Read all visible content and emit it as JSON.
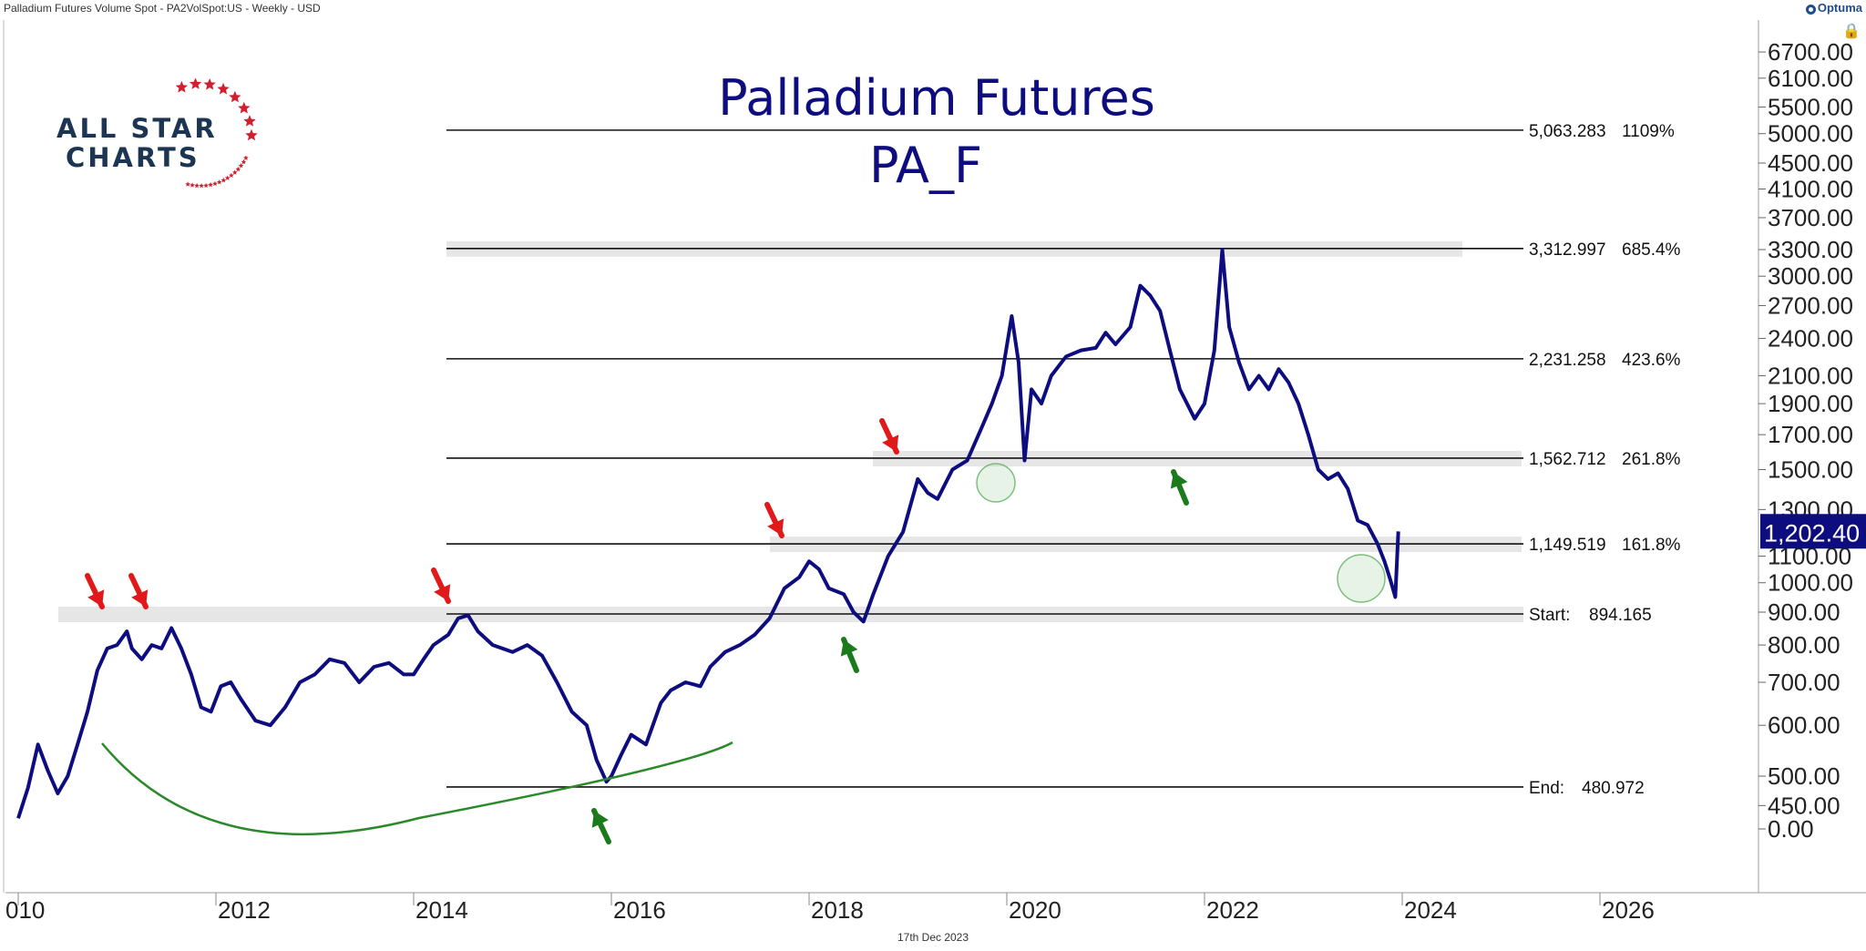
{
  "header": {
    "source_label": "Palladium Futures Volume Spot - PA2VolSpot:US - Weekly - USD",
    "brand": "Optuma"
  },
  "logo": {
    "line1": "ALL STAR",
    "line2": "CHARTS"
  },
  "footer": {
    "date": "17th Dec 2023"
  },
  "colors": {
    "price": "#0d0d80",
    "title": "#0d0d80",
    "up_arrow": "#1b7a1b",
    "down_arrow": "#e0191b",
    "arc": "#2a8a2a",
    "band": "#e6e6e6",
    "current_badge": "#0d0d80",
    "circle": "#7bbf7b"
  },
  "chart_data": {
    "type": "line",
    "title": "Palladium Futures",
    "subtitle": "PA_F",
    "x_ticks": [
      "010",
      "2012",
      "2014",
      "2016",
      "2018",
      "2020",
      "2022",
      "2024",
      "2026"
    ],
    "y_ticks": [
      "6700.00",
      "6100.00",
      "5500.00",
      "5000.00",
      "4500.00",
      "4100.00",
      "3700.00",
      "3300.00",
      "3000.00",
      "2700.00",
      "2400.00",
      "2100.00",
      "1900.00",
      "1700.00",
      "1500.00",
      "1300.00",
      "1100.00",
      "1000.00",
      "900.00",
      "800.00",
      "700.00",
      "600.00",
      "500.00",
      "450.00",
      "0.00"
    ],
    "current_price": "1,202.40",
    "fib_levels": [
      {
        "value": "5,063.283",
        "percent": "1109%"
      },
      {
        "value": "3,312.997",
        "percent": "685.4%"
      },
      {
        "value": "2,231.258",
        "percent": "423.6%"
      },
      {
        "value": "1,562.712",
        "percent": "261.8%"
      },
      {
        "value": "1,149.519",
        "percent": "161.8%"
      },
      {
        "value": "Start:",
        "percent": "894.165"
      },
      {
        "value": "End:",
        "percent": "480.972"
      }
    ],
    "series": [
      {
        "values": [
          [
            2010.0,
            430
          ],
          [
            2010.1,
            480
          ],
          [
            2010.2,
            560
          ],
          [
            2010.3,
            510
          ],
          [
            2010.4,
            470
          ],
          [
            2010.5,
            500
          ],
          [
            2010.6,
            560
          ],
          [
            2010.7,
            630
          ],
          [
            2010.8,
            730
          ],
          [
            2010.9,
            790
          ],
          [
            2011.0,
            800
          ],
          [
            2011.1,
            840
          ],
          [
            2011.15,
            790
          ],
          [
            2011.25,
            760
          ],
          [
            2011.35,
            800
          ],
          [
            2011.45,
            790
          ],
          [
            2011.55,
            850
          ],
          [
            2011.65,
            790
          ],
          [
            2011.75,
            720
          ],
          [
            2011.85,
            640
          ],
          [
            2011.95,
            630
          ],
          [
            2012.05,
            690
          ],
          [
            2012.15,
            700
          ],
          [
            2012.25,
            660
          ],
          [
            2012.4,
            610
          ],
          [
            2012.55,
            600
          ],
          [
            2012.7,
            640
          ],
          [
            2012.85,
            700
          ],
          [
            2013.0,
            720
          ],
          [
            2013.15,
            760
          ],
          [
            2013.3,
            750
          ],
          [
            2013.45,
            700
          ],
          [
            2013.6,
            740
          ],
          [
            2013.75,
            750
          ],
          [
            2013.9,
            720
          ],
          [
            2014.0,
            720
          ],
          [
            2014.1,
            760
          ],
          [
            2014.2,
            800
          ],
          [
            2014.35,
            830
          ],
          [
            2014.45,
            880
          ],
          [
            2014.55,
            890
          ],
          [
            2014.65,
            840
          ],
          [
            2014.8,
            800
          ],
          [
            2015.0,
            780
          ],
          [
            2015.15,
            800
          ],
          [
            2015.3,
            770
          ],
          [
            2015.45,
            700
          ],
          [
            2015.6,
            630
          ],
          [
            2015.75,
            600
          ],
          [
            2015.85,
            530
          ],
          [
            2015.95,
            490
          ],
          [
            2016.0,
            500
          ],
          [
            2016.1,
            540
          ],
          [
            2016.2,
            580
          ],
          [
            2016.35,
            560
          ],
          [
            2016.5,
            650
          ],
          [
            2016.6,
            680
          ],
          [
            2016.75,
            700
          ],
          [
            2016.9,
            690
          ],
          [
            2017.0,
            740
          ],
          [
            2017.15,
            780
          ],
          [
            2017.3,
            800
          ],
          [
            2017.45,
            830
          ],
          [
            2017.6,
            880
          ],
          [
            2017.75,
            980
          ],
          [
            2017.9,
            1020
          ],
          [
            2018.0,
            1080
          ],
          [
            2018.1,
            1050
          ],
          [
            2018.2,
            980
          ],
          [
            2018.35,
            960
          ],
          [
            2018.45,
            900
          ],
          [
            2018.55,
            870
          ],
          [
            2018.65,
            960
          ],
          [
            2018.8,
            1100
          ],
          [
            2018.95,
            1200
          ],
          [
            2019.1,
            1450
          ],
          [
            2019.2,
            1380
          ],
          [
            2019.3,
            1350
          ],
          [
            2019.45,
            1500
          ],
          [
            2019.6,
            1550
          ],
          [
            2019.75,
            1750
          ],
          [
            2019.85,
            1900
          ],
          [
            2019.95,
            2100
          ],
          [
            2020.05,
            2600
          ],
          [
            2020.12,
            2200
          ],
          [
            2020.18,
            1550
          ],
          [
            2020.25,
            2000
          ],
          [
            2020.35,
            1900
          ],
          [
            2020.45,
            2100
          ],
          [
            2020.6,
            2250
          ],
          [
            2020.75,
            2300
          ],
          [
            2020.9,
            2320
          ],
          [
            2021.0,
            2450
          ],
          [
            2021.1,
            2350
          ],
          [
            2021.25,
            2500
          ],
          [
            2021.35,
            2900
          ],
          [
            2021.45,
            2800
          ],
          [
            2021.55,
            2650
          ],
          [
            2021.65,
            2300
          ],
          [
            2021.75,
            2000
          ],
          [
            2021.9,
            1800
          ],
          [
            2022.0,
            1900
          ],
          [
            2022.1,
            2300
          ],
          [
            2022.18,
            3300
          ],
          [
            2022.25,
            2500
          ],
          [
            2022.35,
            2200
          ],
          [
            2022.45,
            2000
          ],
          [
            2022.55,
            2100
          ],
          [
            2022.65,
            2000
          ],
          [
            2022.75,
            2150
          ],
          [
            2022.85,
            2050
          ],
          [
            2022.95,
            1900
          ],
          [
            2023.05,
            1700
          ],
          [
            2023.15,
            1500
          ],
          [
            2023.25,
            1450
          ],
          [
            2023.35,
            1480
          ],
          [
            2023.45,
            1400
          ],
          [
            2023.55,
            1250
          ],
          [
            2023.65,
            1230
          ],
          [
            2023.75,
            1150
          ],
          [
            2023.82,
            1080
          ],
          [
            2023.88,
            1010
          ],
          [
            2023.93,
            950
          ],
          [
            2023.96,
            1202
          ]
        ]
      }
    ]
  }
}
